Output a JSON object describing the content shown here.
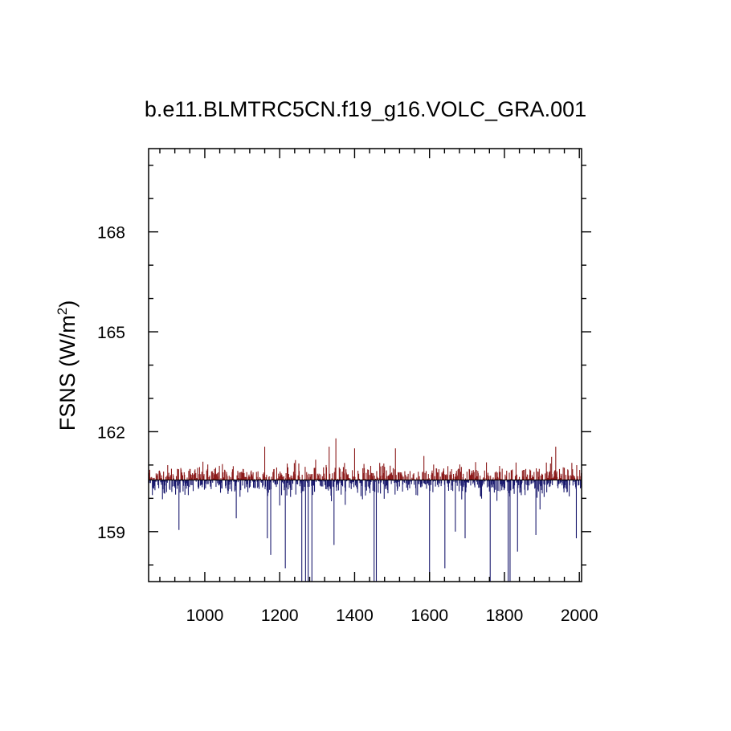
{
  "chart_data": {
    "type": "bar",
    "title": "b.e11.BLMTRC5CN.f19_g16.VOLC_GRA.001",
    "ylabel_base": "FSNS (W/m",
    "ylabel_sup": "2",
    "ylabel_tail": ")",
    "xlabel": "",
    "xlim": [
      850,
      2006
    ],
    "ylim": [
      157.5,
      170.5
    ],
    "x_ticks": [
      1000,
      1200,
      1400,
      1600,
      1800,
      2000
    ],
    "x_tick_labels": [
      "1000",
      "1200",
      "1400",
      "1600",
      "1800",
      "2000"
    ],
    "y_ticks": [
      159,
      162,
      165,
      168
    ],
    "y_tick_labels": [
      "159",
      "162",
      "165",
      "168"
    ],
    "reference_value": 160.55,
    "colors": {
      "above": "#8b1a1a",
      "below": "#1a1a6e",
      "frame": "#000000"
    },
    "x_start": 850,
    "x_end": 2005,
    "mean": 160.55,
    "noise_sd": 0.22,
    "volcanic_dips": [
      {
        "x": 931,
        "y": 159.05
      },
      {
        "x": 1084,
        "y": 159.4
      },
      {
        "x": 1167,
        "y": 158.8
      },
      {
        "x": 1176,
        "y": 158.3
      },
      {
        "x": 1215,
        "y": 157.9
      },
      {
        "x": 1259,
        "y": 157.5
      },
      {
        "x": 1269,
        "y": 157.5
      },
      {
        "x": 1276,
        "y": 157.5
      },
      {
        "x": 1286,
        "y": 157.5
      },
      {
        "x": 1345,
        "y": 158.6
      },
      {
        "x": 1452,
        "y": 157.5
      },
      {
        "x": 1458,
        "y": 157.5
      },
      {
        "x": 1600,
        "y": 157.5
      },
      {
        "x": 1641,
        "y": 157.9
      },
      {
        "x": 1669,
        "y": 159.0
      },
      {
        "x": 1695,
        "y": 158.8
      },
      {
        "x": 1762,
        "y": 157.5
      },
      {
        "x": 1810,
        "y": 157.5
      },
      {
        "x": 1815,
        "y": 157.5
      },
      {
        "x": 1835,
        "y": 158.4
      },
      {
        "x": 1884,
        "y": 158.9
      },
      {
        "x": 1992,
        "y": 158.8
      }
    ],
    "peaks": [
      {
        "x": 1160,
        "y": 161.55
      },
      {
        "x": 1332,
        "y": 161.55
      },
      {
        "x": 1350,
        "y": 161.8
      },
      {
        "x": 1400,
        "y": 161.5
      },
      {
        "x": 1509,
        "y": 161.5
      },
      {
        "x": 1937,
        "y": 161.55
      }
    ]
  }
}
